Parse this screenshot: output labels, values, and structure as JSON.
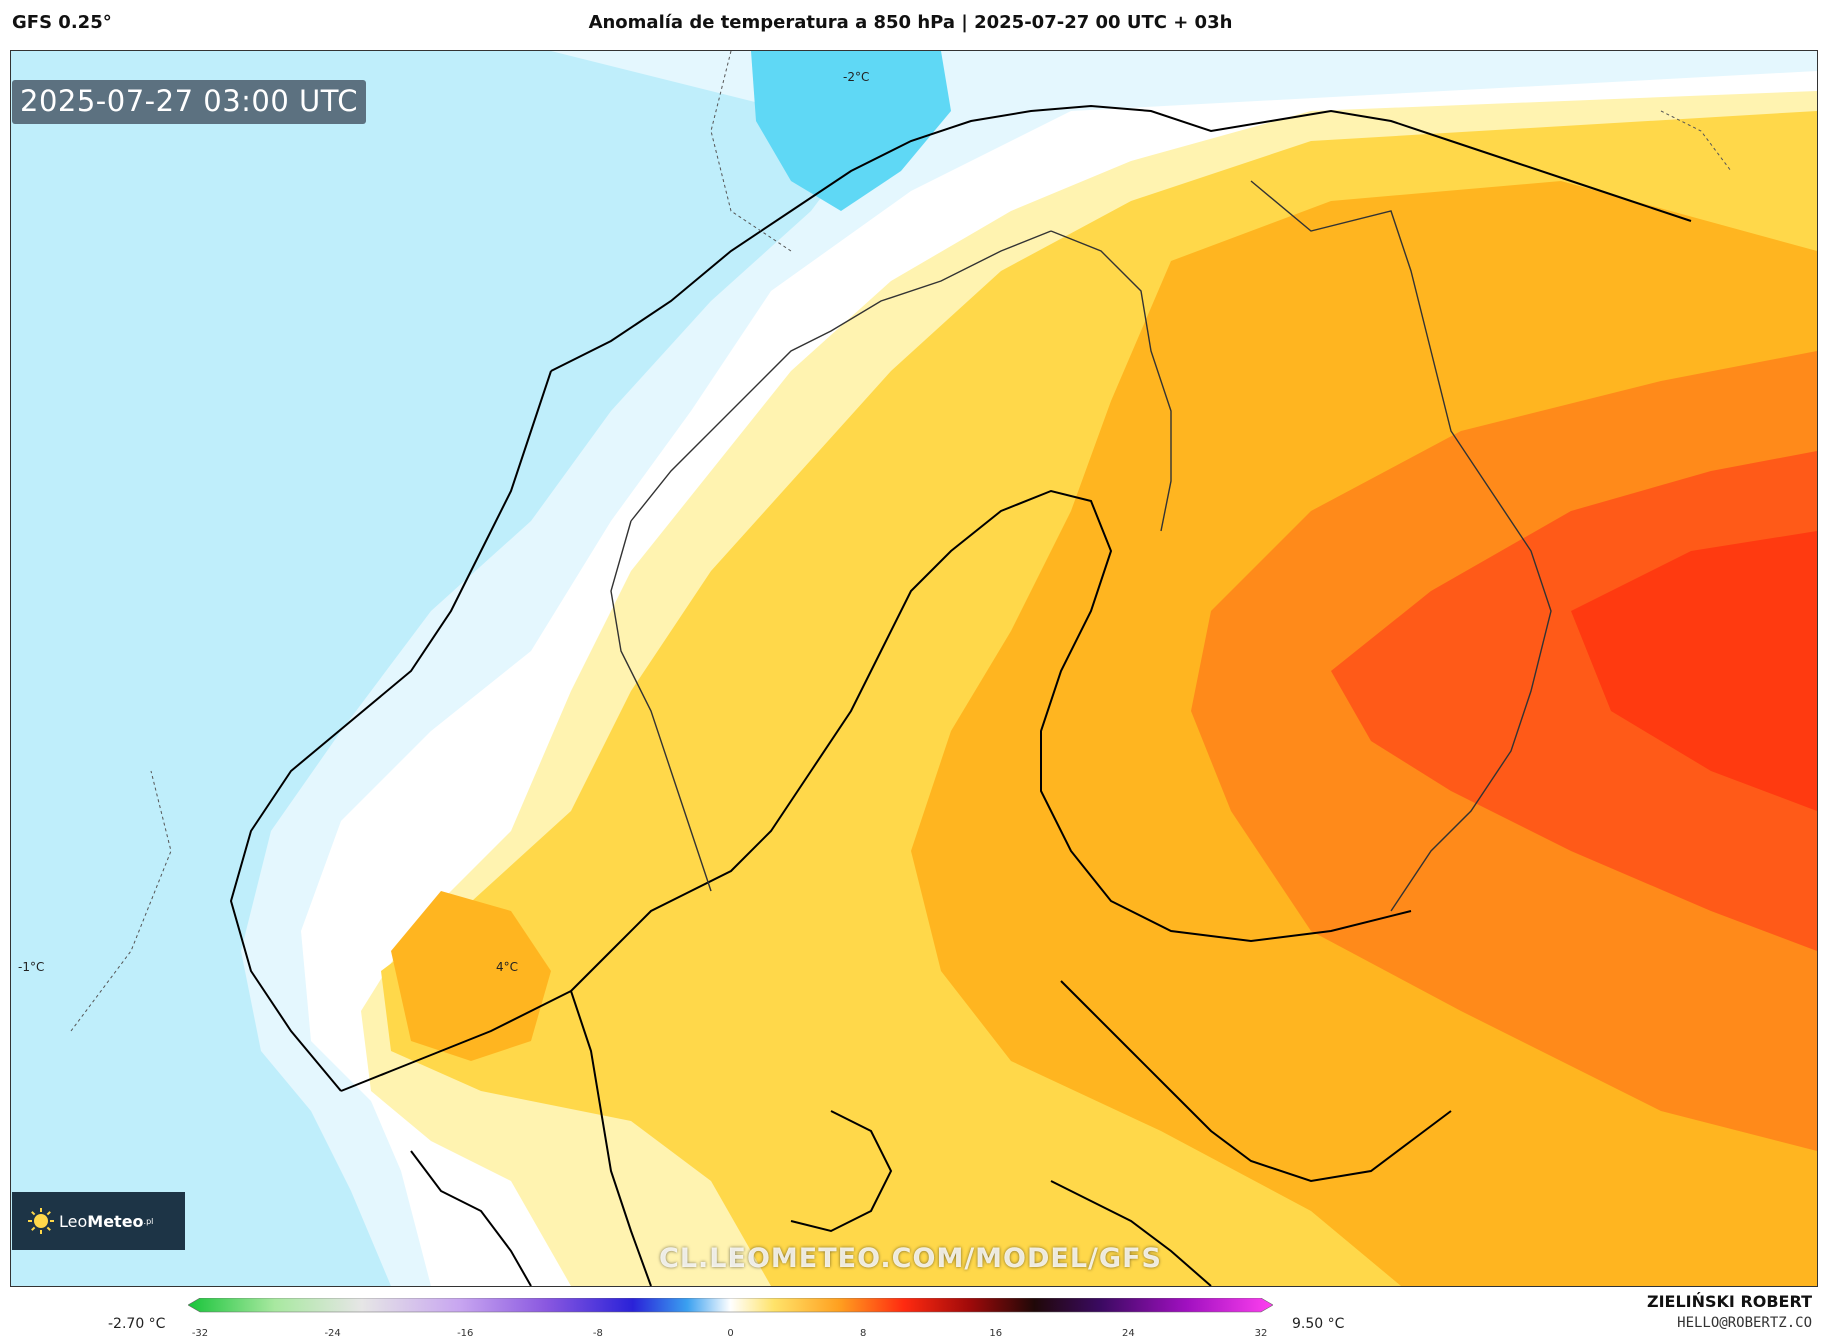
{
  "header": {
    "model": "GFS 0.25°",
    "title": "Anomalía de temperatura a 850 hPa | 2025-07-27 00 UTC + 03h"
  },
  "map": {
    "timestamp": "2025-07-27 03:00 UTC",
    "watermark": "CL.LEOMETEO.COM/MODEL/GFS",
    "isotherm_labels": [
      "-2°C",
      "-1°C",
      "4°C"
    ],
    "logo": {
      "brand_light": "Leo",
      "brand_bold": "Meteo",
      "tld": ".pl"
    },
    "colors": {
      "sea_cold": "#bfeefb",
      "cold_deep": "#5fd8f5",
      "neutral": "#ffffff",
      "light_warm": "#fff3b0",
      "warm": "#ffd84a",
      "warmer": "#ffb520",
      "hot": "#ff8a1a",
      "hottest": "#ff4a14"
    }
  },
  "colorbar": {
    "min_label": "-2.70 °C",
    "max_label": "9.50 °C",
    "ticks": [
      "-32",
      "-24",
      "-16",
      "-8",
      "0",
      "8",
      "16",
      "24",
      "32"
    ],
    "range": [
      -32,
      32
    ]
  },
  "credits": {
    "author": "ZIELIŃSKI ROBERT",
    "email": "HELLO@ROBERTZ.CO"
  }
}
